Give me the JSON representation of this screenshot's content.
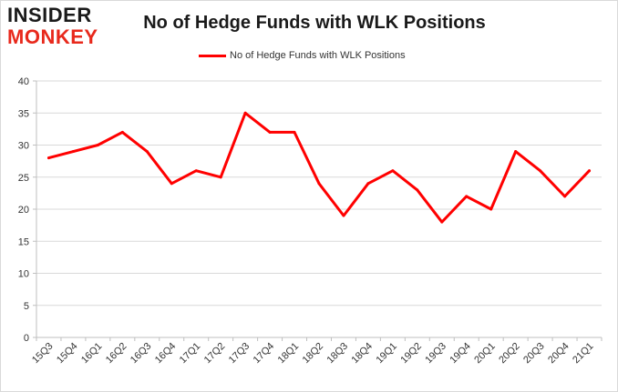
{
  "logo": {
    "line1": "INSIDER",
    "line2": "MONKEY"
  },
  "chart_data": {
    "type": "line",
    "title": "No of Hedge Funds with WLK Positions",
    "xlabel": "",
    "ylabel": "",
    "ylim": [
      0,
      40
    ],
    "yticks": [
      0,
      5,
      10,
      15,
      20,
      25,
      30,
      35,
      40
    ],
    "grid": true,
    "legend_position": "top-center",
    "categories": [
      "15Q3",
      "15Q4",
      "16Q1",
      "16Q2",
      "16Q3",
      "16Q4",
      "17Q1",
      "17Q2",
      "17Q3",
      "17Q4",
      "18Q1",
      "18Q2",
      "18Q3",
      "18Q4",
      "19Q1",
      "19Q2",
      "19Q3",
      "19Q4",
      "20Q1",
      "20Q2",
      "20Q3",
      "20Q4",
      "21Q1"
    ],
    "series": [
      {
        "name": "No of Hedge Funds with WLK Positions",
        "color": "#ff0000",
        "values": [
          28,
          29,
          30,
          32,
          29,
          24,
          26,
          25,
          35,
          32,
          32,
          24,
          19,
          24,
          26,
          23,
          18,
          22,
          20,
          29,
          26,
          22,
          26
        ]
      }
    ]
  }
}
